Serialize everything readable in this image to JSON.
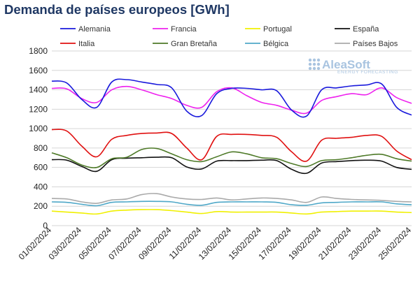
{
  "chart_data": {
    "type": "line",
    "title": "Demanda de países europeos [GWh]",
    "ylim": [
      0,
      1800
    ],
    "yticks": [
      0,
      200,
      400,
      600,
      800,
      1000,
      1200,
      1400,
      1600,
      1800
    ],
    "grid": true,
    "legend_position": "top",
    "x": [
      "01/02/2024",
      "02/02/2024",
      "03/02/2024",
      "04/02/2024",
      "05/02/2024",
      "06/02/2024",
      "07/02/2024",
      "08/02/2024",
      "09/02/2024",
      "10/02/2024",
      "11/02/2024",
      "12/02/2024",
      "13/02/2024",
      "14/02/2024",
      "15/02/2024",
      "16/02/2024",
      "17/02/2024",
      "18/02/2024",
      "19/02/2024",
      "20/02/2024",
      "21/02/2024",
      "22/02/2024",
      "23/02/2024",
      "24/02/2024",
      "25/02/2024"
    ],
    "xtick_labels": [
      "01/02/2024",
      "03/02/2024",
      "05/02/2024",
      "07/02/2024",
      "09/02/2024",
      "11/02/2024",
      "13/02/2024",
      "15/02/2024",
      "17/02/2024",
      "19/02/2024",
      "21/02/2024",
      "23/02/2024",
      "25/02/2024"
    ],
    "series": [
      {
        "name": "Alemania",
        "color": "#1a1adc",
        "values": [
          1490,
          1470,
          1300,
          1220,
          1480,
          1505,
          1480,
          1455,
          1420,
          1180,
          1135,
          1360,
          1415,
          1415,
          1400,
          1390,
          1190,
          1130,
          1400,
          1420,
          1440,
          1450,
          1460,
          1220,
          1140
        ]
      },
      {
        "name": "Francia",
        "color": "#ee22ee",
        "values": [
          1415,
          1410,
          1310,
          1270,
          1400,
          1435,
          1400,
          1350,
          1310,
          1240,
          1220,
          1380,
          1420,
          1340,
          1270,
          1240,
          1190,
          1160,
          1290,
          1330,
          1360,
          1350,
          1420,
          1320,
          1260
        ]
      },
      {
        "name": "Portugal",
        "color": "#f0f000",
        "values": [
          150,
          140,
          130,
          120,
          150,
          160,
          165,
          165,
          155,
          140,
          125,
          145,
          140,
          140,
          140,
          140,
          130,
          120,
          140,
          145,
          150,
          150,
          150,
          140,
          135
        ]
      },
      {
        "name": "España",
        "color": "#111111",
        "values": [
          680,
          675,
          610,
          560,
          680,
          695,
          700,
          705,
          700,
          605,
          585,
          665,
          670,
          670,
          675,
          670,
          580,
          540,
          645,
          660,
          670,
          675,
          665,
          600,
          580
        ]
      },
      {
        "name": "Italia",
        "color": "#e01010",
        "values": [
          990,
          975,
          820,
          710,
          890,
          930,
          950,
          955,
          950,
          800,
          680,
          920,
          940,
          940,
          930,
          910,
          760,
          665,
          880,
          900,
          910,
          930,
          920,
          770,
          680
        ]
      },
      {
        "name": "Gran Bretaña",
        "color": "#4e7a28",
        "values": [
          750,
          700,
          625,
          600,
          690,
          705,
          785,
          795,
          740,
          680,
          660,
          710,
          760,
          740,
          700,
          690,
          640,
          610,
          670,
          680,
          700,
          725,
          735,
          690,
          665
        ]
      },
      {
        "name": "Bélgica",
        "color": "#4fa8c8",
        "values": [
          245,
          240,
          220,
          205,
          240,
          245,
          250,
          250,
          245,
          220,
          210,
          240,
          245,
          245,
          245,
          240,
          215,
          210,
          235,
          240,
          245,
          245,
          245,
          225,
          215
        ]
      },
      {
        "name": "Países Bajos",
        "color": "#aaaaaa",
        "values": [
          280,
          275,
          245,
          230,
          265,
          275,
          320,
          330,
          295,
          275,
          270,
          285,
          265,
          275,
          285,
          280,
          265,
          240,
          295,
          280,
          270,
          265,
          260,
          250,
          245
        ]
      }
    ]
  },
  "watermark": {
    "name": "AleaSoft",
    "tagline": "ENERGY FORECASTING"
  }
}
